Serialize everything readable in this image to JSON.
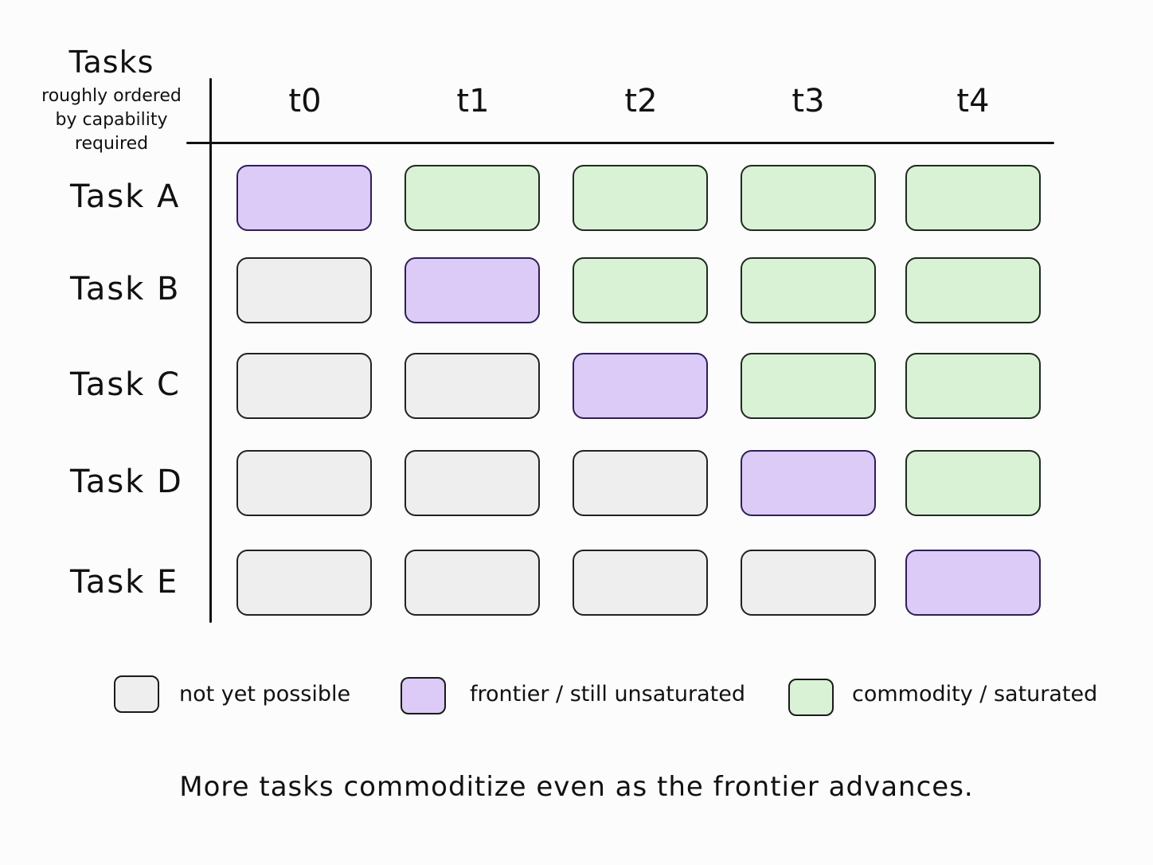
{
  "corner": {
    "title": "Tasks",
    "subtitle": "roughly ordered\nby capability\nrequired"
  },
  "columns": [
    "t0",
    "t1",
    "t2",
    "t3",
    "t4"
  ],
  "rows": [
    {
      "label": "Task A",
      "states": [
        "frontier",
        "commodity",
        "commodity",
        "commodity",
        "commodity"
      ]
    },
    {
      "label": "Task B",
      "states": [
        "not_yet",
        "frontier",
        "commodity",
        "commodity",
        "commodity"
      ]
    },
    {
      "label": "Task C",
      "states": [
        "not_yet",
        "not_yet",
        "frontier",
        "commodity",
        "commodity"
      ]
    },
    {
      "label": "Task D",
      "states": [
        "not_yet",
        "not_yet",
        "not_yet",
        "frontier",
        "commodity"
      ]
    },
    {
      "label": "Task E",
      "states": [
        "not_yet",
        "not_yet",
        "not_yet",
        "not_yet",
        "frontier"
      ]
    }
  ],
  "legend": [
    {
      "key": "not_yet",
      "label": "not yet possible",
      "color": "#eeeeee"
    },
    {
      "key": "frontier",
      "label": "frontier / still unsaturated",
      "color": "#dccaf7"
    },
    {
      "key": "commodity",
      "label": "commodity / saturated",
      "color": "#d9f2d5"
    }
  ],
  "caption": "More tasks commoditize even as the frontier advances."
}
